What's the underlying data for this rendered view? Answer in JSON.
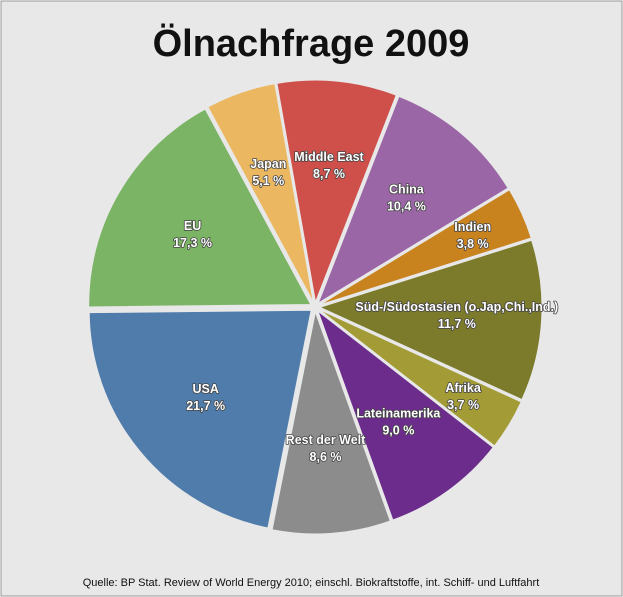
{
  "chart_data": {
    "type": "pie",
    "title": "Ölnachfrage 2009",
    "categories": [
      "Middle East",
      "China",
      "Indien",
      "Süd-/Südostasien (o.Jap,Chi.,Ind.)",
      "Afrika",
      "Lateinamerika",
      "Rest der Welt",
      "USA",
      "EU",
      "Japan"
    ],
    "values": [
      8.7,
      10.4,
      3.8,
      11.7,
      3.7,
      9.0,
      8.6,
      21.7,
      17.3,
      5.1
    ],
    "value_labels": [
      "8,7 %",
      "10,4 %",
      "3,8 %",
      "11,7 %",
      "3,7 %",
      "9,0 %",
      "8,6 %",
      "21,7 %",
      "17,3 %",
      "5,1 %"
    ],
    "colors": [
      "#cf4f4a",
      "#9a66a6",
      "#c8831f",
      "#7c7a2b",
      "#a39b35",
      "#6b2c8c",
      "#8c8c8c",
      "#4f7cab",
      "#7cb466",
      "#ebb761"
    ],
    "source": "Quelle: BP Stat. Review of World Energy 2010; einschl. Biokraftstoffe, int. Schiff- und Luftfahrt"
  }
}
